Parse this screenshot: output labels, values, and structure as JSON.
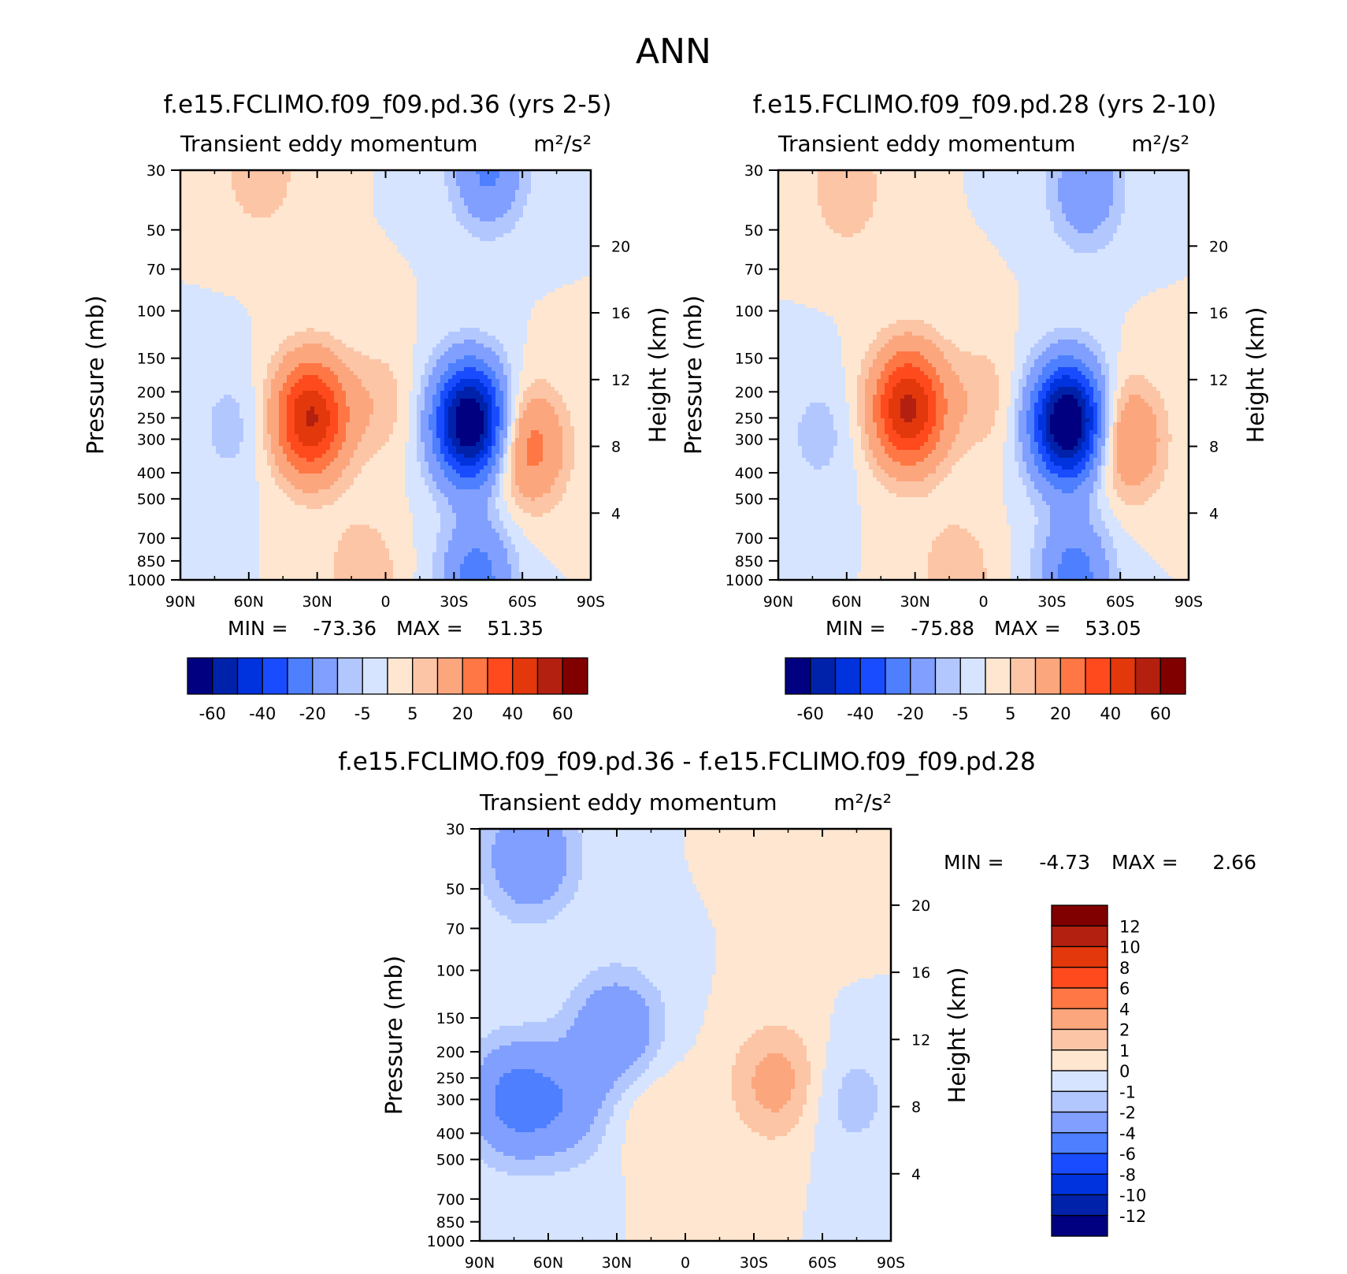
{
  "figure": {
    "title": "ANN",
    "colors": {
      "blue_ramp": [
        "#000080",
        "#0022aa",
        "#0033dd",
        "#1a4cff",
        "#4d7fff",
        "#809fff",
        "#b3c7ff",
        "#d6e4ff"
      ],
      "red_ramp": [
        "#fee6d0",
        "#fcc5a6",
        "#fca67e",
        "#ff7744",
        "#ff4a1e",
        "#e2380c",
        "#b32010",
        "#800000"
      ]
    }
  },
  "chart_data": [
    {
      "type": "heatmap",
      "title": "f.e15.FCLIMO.f09_f09.pd.36 (yrs 2-5)",
      "subtitle_left": "Transient eddy momentum",
      "subtitle_units": "m²/s²",
      "xlabel": "",
      "ylabel": "Pressure (mb)",
      "y2label": "Height (km)",
      "x_ticks": [
        "90N",
        "60N",
        "30N",
        "0",
        "30S",
        "60S",
        "90S"
      ],
      "y_ticks": [
        "30",
        "50",
        "70",
        "100",
        "150",
        "200",
        "250",
        "300",
        "400",
        "500",
        "700",
        "850",
        "1000"
      ],
      "y2_ticks": [
        "20",
        "16",
        "12",
        "8",
        "4"
      ],
      "y_scale": "log-pressure",
      "xlim": [
        90,
        -90
      ],
      "ylim": [
        1000,
        30
      ],
      "stats": {
        "min_label": "MIN =",
        "min": "-73.36",
        "max_label": "MAX =",
        "max": "51.35"
      },
      "colorbar": {
        "orientation": "horizontal",
        "levels": [
          -60,
          -50,
          -40,
          -30,
          -20,
          -10,
          -5,
          0,
          5,
          10,
          20,
          30,
          40,
          50,
          60
        ],
        "labels": [
          "-60",
          "-40",
          "-20",
          "-5",
          "5",
          "20",
          "40",
          "60"
        ]
      },
      "features": [
        {
          "lat": 33,
          "p": 250,
          "value": 51.35
        },
        {
          "lat": -37,
          "p": 260,
          "value": -73.36
        },
        {
          "lat": -63,
          "p": 320,
          "value": 25
        },
        {
          "lat": 3,
          "p": 220,
          "value": 8
        },
        {
          "lat": 55,
          "p": 30,
          "value": 10
        },
        {
          "lat": -45,
          "p": 30,
          "value": -22
        },
        {
          "lat": 68,
          "p": 270,
          "value": -7
        },
        {
          "lat": 10,
          "p": 950,
          "value": 10
        },
        {
          "lat": -40,
          "p": 980,
          "value": -25
        }
      ]
    },
    {
      "type": "heatmap",
      "title": "f.e15.FCLIMO.f09_f09.pd.28 (yrs 2-10)",
      "subtitle_left": "Transient eddy momentum",
      "subtitle_units": "m²/s²",
      "xlabel": "",
      "ylabel": "Pressure (mb)",
      "y2label": "Height (km)",
      "x_ticks": [
        "90N",
        "60N",
        "30N",
        "0",
        "30S",
        "60S",
        "90S"
      ],
      "y_ticks": [
        "30",
        "50",
        "70",
        "100",
        "150",
        "200",
        "250",
        "300",
        "400",
        "500",
        "700",
        "850",
        "1000"
      ],
      "y2_ticks": [
        "20",
        "16",
        "12",
        "8",
        "4"
      ],
      "y_scale": "log-pressure",
      "xlim": [
        90,
        -90
      ],
      "ylim": [
        1000,
        30
      ],
      "stats": {
        "min_label": "MIN =",
        "min": "-75.88",
        "max_label": "MAX =",
        "max": "53.05"
      },
      "colorbar": {
        "orientation": "horizontal",
        "levels": [
          -60,
          -50,
          -40,
          -30,
          -20,
          -10,
          -5,
          0,
          5,
          10,
          20,
          30,
          40,
          50,
          60
        ],
        "labels": [
          "-60",
          "-40",
          "-20",
          "-5",
          "5",
          "20",
          "40",
          "60"
        ]
      },
      "features": [
        {
          "lat": 33,
          "p": 230,
          "value": 53.05
        },
        {
          "lat": -37,
          "p": 260,
          "value": -75.88
        },
        {
          "lat": -63,
          "p": 300,
          "value": 22
        },
        {
          "lat": 1,
          "p": 210,
          "value": 8
        },
        {
          "lat": 60,
          "p": 35,
          "value": 10
        },
        {
          "lat": -45,
          "p": 35,
          "value": -18
        },
        {
          "lat": 72,
          "p": 290,
          "value": -7
        },
        {
          "lat": 12,
          "p": 960,
          "value": 10
        },
        {
          "lat": -40,
          "p": 970,
          "value": -25
        }
      ]
    },
    {
      "type": "heatmap",
      "title": "f.e15.FCLIMO.f09_f09.pd.36 - f.e15.FCLIMO.f09_f09.pd.28",
      "subtitle_left": "Transient eddy momentum",
      "subtitle_units": "m²/s²",
      "xlabel": "",
      "ylabel": "Pressure (mb)",
      "y2label": "Height (km)",
      "x_ticks": [
        "90N",
        "60N",
        "30N",
        "0",
        "30S",
        "60S",
        "90S"
      ],
      "y_ticks": [
        "30",
        "50",
        "70",
        "100",
        "150",
        "200",
        "250",
        "300",
        "400",
        "500",
        "700",
        "850",
        "1000"
      ],
      "y2_ticks": [
        "20",
        "16",
        "12",
        "8",
        "4"
      ],
      "y_scale": "log-pressure",
      "xlim": [
        90,
        -90
      ],
      "ylim": [
        1000,
        30
      ],
      "stats": {
        "min_label": "MIN =",
        "min": "-4.73",
        "max_label": "MAX =",
        "max": "2.66"
      },
      "colorbar": {
        "orientation": "vertical",
        "levels": [
          -12,
          -10,
          -8,
          -6,
          -4,
          -2,
          -1,
          0,
          1,
          2,
          4,
          6,
          8,
          10,
          12
        ],
        "labels": [
          "12",
          "10",
          "8",
          "6",
          "4",
          "2",
          "1",
          "0",
          "-1",
          "-2",
          "-4",
          "-6",
          "-8",
          "-10",
          "-12"
        ]
      },
      "features": [
        {
          "lat": 68,
          "p": 38,
          "value": -4
        },
        {
          "lat": 75,
          "p": 300,
          "value": -4.73
        },
        {
          "lat": 50,
          "p": 320,
          "value": -2.5
        },
        {
          "lat": 30,
          "p": 170,
          "value": -4
        },
        {
          "lat": -40,
          "p": 260,
          "value": 2.66
        },
        {
          "lat": 18,
          "p": 300,
          "value": 1.2
        },
        {
          "lat": -72,
          "p": 300,
          "value": -1.5
        },
        {
          "lat": -60,
          "p": 45,
          "value": 0.8
        }
      ]
    }
  ]
}
